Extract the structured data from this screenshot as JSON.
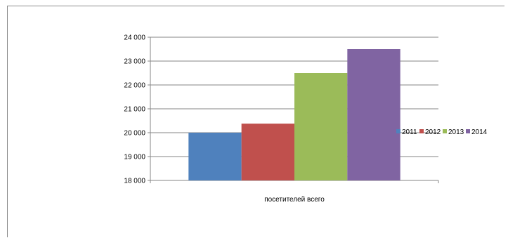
{
  "chart_data": {
    "type": "bar",
    "categories": [
      "посетителей всего"
    ],
    "series": [
      {
        "name": "2011",
        "values": [
          20000
        ],
        "color": "#4f81bd"
      },
      {
        "name": "2012",
        "values": [
          20380
        ],
        "color": "#c0504d"
      },
      {
        "name": "2013",
        "values": [
          22500
        ],
        "color": "#9bbb59"
      },
      {
        "name": "2014",
        "values": [
          23500
        ],
        "color": "#8064a2"
      }
    ],
    "y_ticks": [
      "18 000",
      "19 000",
      "20 000",
      "21 000",
      "22 000",
      "23 000",
      "24 000"
    ],
    "ylim": [
      18000,
      24000
    ],
    "grid": true,
    "legend_position": "right",
    "title": "",
    "xlabel": "",
    "ylabel": ""
  }
}
